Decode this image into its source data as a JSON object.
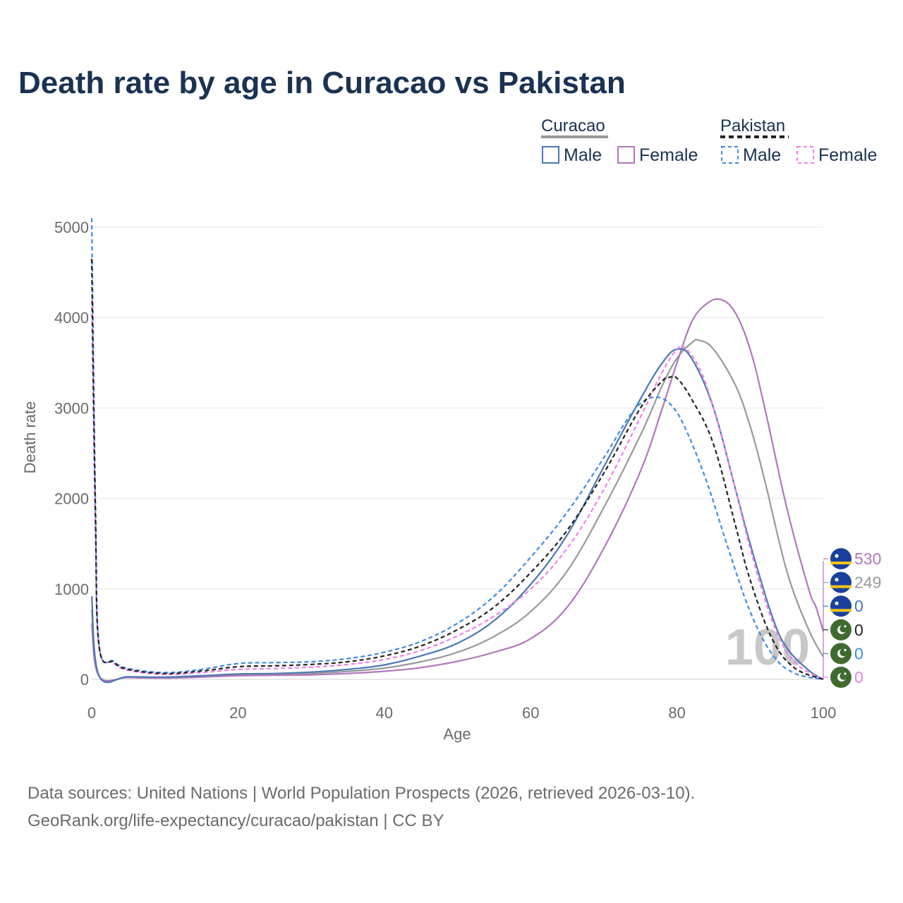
{
  "title": "Death rate by age in Curacao vs Pakistan",
  "legend": {
    "groups": [
      {
        "name": "Curacao",
        "items": [
          "Male",
          "Female"
        ]
      },
      {
        "name": "Pakistan",
        "items": [
          "Male",
          "Female"
        ]
      }
    ]
  },
  "source_line1": "Data sources: United Nations | World Population Prospects (2026, retrieved 2026-03-10).",
  "source_line2": "GeoRank.org/life-expectancy/curacao/pakistan | CC BY",
  "watermark": "100",
  "chart_data": {
    "type": "line",
    "title": "Death rate by age in Curacao vs Pakistan",
    "xlabel": "Age",
    "ylabel": "Death rate",
    "xlim": [
      0,
      100
    ],
    "ylim": [
      0,
      5000
    ],
    "xticks": [
      0,
      20,
      40,
      60,
      80,
      100
    ],
    "yticks": [
      0,
      1000,
      2000,
      3000,
      4000,
      5000
    ],
    "grid": true,
    "legend_position": "top-right",
    "series": [
      {
        "name": "Curacao Male",
        "key": "cur_male",
        "color": "#4a78b5",
        "dash": false,
        "points": [
          [
            0,
            920
          ],
          [
            1,
            40
          ],
          [
            5,
            30
          ],
          [
            10,
            25
          ],
          [
            15,
            40
          ],
          [
            20,
            60
          ],
          [
            25,
            65
          ],
          [
            30,
            80
          ],
          [
            35,
            110
          ],
          [
            40,
            160
          ],
          [
            45,
            260
          ],
          [
            50,
            400
          ],
          [
            55,
            650
          ],
          [
            60,
            1050
          ],
          [
            65,
            1600
          ],
          [
            70,
            2350
          ],
          [
            75,
            3100
          ],
          [
            78,
            3500
          ],
          [
            80,
            3650
          ],
          [
            82,
            3550
          ],
          [
            85,
            3000
          ],
          [
            88,
            2100
          ],
          [
            90,
            1500
          ],
          [
            93,
            700
          ],
          [
            95,
            350
          ],
          [
            98,
            100
          ],
          [
            100,
            0
          ]
        ],
        "end_value": "0"
      },
      {
        "name": "Curacao Female",
        "key": "cur_female",
        "color": "#b176bb",
        "dash": false,
        "points": [
          [
            0,
            620
          ],
          [
            1,
            35
          ],
          [
            5,
            20
          ],
          [
            10,
            15
          ],
          [
            15,
            25
          ],
          [
            20,
            40
          ],
          [
            25,
            45
          ],
          [
            30,
            50
          ],
          [
            35,
            65
          ],
          [
            40,
            90
          ],
          [
            45,
            130
          ],
          [
            50,
            200
          ],
          [
            55,
            300
          ],
          [
            60,
            450
          ],
          [
            65,
            800
          ],
          [
            70,
            1450
          ],
          [
            75,
            2300
          ],
          [
            78,
            3000
          ],
          [
            80,
            3500
          ],
          [
            82,
            3950
          ],
          [
            84,
            4150
          ],
          [
            86,
            4200
          ],
          [
            88,
            4050
          ],
          [
            90,
            3650
          ],
          [
            92,
            3000
          ],
          [
            95,
            1900
          ],
          [
            98,
            1000
          ],
          [
            99,
            800
          ],
          [
            100,
            530
          ]
        ],
        "end_value": "530"
      },
      {
        "name": "Curacao (both)",
        "key": "cur_both",
        "color": "#999999",
        "dash": false,
        "points": [
          [
            0,
            770
          ],
          [
            1,
            38
          ],
          [
            5,
            25
          ],
          [
            10,
            20
          ],
          [
            15,
            33
          ],
          [
            20,
            50
          ],
          [
            25,
            55
          ],
          [
            30,
            65
          ],
          [
            35,
            88
          ],
          [
            40,
            125
          ],
          [
            45,
            195
          ],
          [
            50,
            300
          ],
          [
            55,
            475
          ],
          [
            60,
            750
          ],
          [
            65,
            1200
          ],
          [
            70,
            1900
          ],
          [
            75,
            2700
          ],
          [
            78,
            3250
          ],
          [
            80,
            3550
          ],
          [
            82,
            3720
          ],
          [
            83,
            3750
          ],
          [
            85,
            3650
          ],
          [
            88,
            3250
          ],
          [
            90,
            2800
          ],
          [
            92,
            2200
          ],
          [
            95,
            1200
          ],
          [
            98,
            550
          ],
          [
            100,
            249
          ]
        ],
        "end_value": "249"
      },
      {
        "name": "Pakistan Male",
        "key": "pak_male",
        "color": "#3f8ce0",
        "dash": true,
        "points": [
          [
            0,
            5100
          ],
          [
            0.5,
            2000
          ],
          [
            1,
            380
          ],
          [
            3,
            200
          ],
          [
            5,
            120
          ],
          [
            10,
            75
          ],
          [
            15,
            110
          ],
          [
            20,
            175
          ],
          [
            25,
            185
          ],
          [
            30,
            195
          ],
          [
            35,
            230
          ],
          [
            40,
            300
          ],
          [
            45,
            420
          ],
          [
            50,
            620
          ],
          [
            55,
            920
          ],
          [
            60,
            1350
          ],
          [
            65,
            1850
          ],
          [
            70,
            2450
          ],
          [
            73,
            2850
          ],
          [
            75,
            3050
          ],
          [
            77,
            3120
          ],
          [
            79,
            3050
          ],
          [
            81,
            2800
          ],
          [
            84,
            2200
          ],
          [
            87,
            1450
          ],
          [
            90,
            750
          ],
          [
            93,
            280
          ],
          [
            96,
            70
          ],
          [
            100,
            0
          ]
        ],
        "end_value": "0"
      },
      {
        "name": "Pakistan Female",
        "key": "pak_female",
        "color": "#f080ea",
        "dash": true,
        "points": [
          [
            0,
            4200
          ],
          [
            0.5,
            1700
          ],
          [
            1,
            360
          ],
          [
            3,
            180
          ],
          [
            5,
            100
          ],
          [
            10,
            55
          ],
          [
            15,
            75
          ],
          [
            20,
            110
          ],
          [
            25,
            120
          ],
          [
            30,
            135
          ],
          [
            35,
            165
          ],
          [
            40,
            220
          ],
          [
            45,
            320
          ],
          [
            50,
            480
          ],
          [
            55,
            700
          ],
          [
            60,
            1000
          ],
          [
            65,
            1450
          ],
          [
            70,
            2100
          ],
          [
            75,
            2900
          ],
          [
            78,
            3400
          ],
          [
            80,
            3650
          ],
          [
            81,
            3670
          ],
          [
            83,
            3450
          ],
          [
            85,
            3000
          ],
          [
            88,
            2100
          ],
          [
            90,
            1450
          ],
          [
            93,
            650
          ],
          [
            96,
            200
          ],
          [
            100,
            0
          ]
        ],
        "end_value": "0"
      },
      {
        "name": "Pakistan (both)",
        "key": "pak_both",
        "color": "#222222",
        "dash": true,
        "points": [
          [
            0,
            4650
          ],
          [
            0.5,
            1850
          ],
          [
            1,
            370
          ],
          [
            3,
            190
          ],
          [
            5,
            110
          ],
          [
            10,
            65
          ],
          [
            15,
            92
          ],
          [
            20,
            140
          ],
          [
            25,
            150
          ],
          [
            30,
            165
          ],
          [
            35,
            195
          ],
          [
            40,
            260
          ],
          [
            45,
            370
          ],
          [
            50,
            550
          ],
          [
            55,
            800
          ],
          [
            60,
            1180
          ],
          [
            65,
            1650
          ],
          [
            70,
            2280
          ],
          [
            75,
            3000
          ],
          [
            78,
            3300
          ],
          [
            79,
            3340
          ],
          [
            80,
            3330
          ],
          [
            82,
            3100
          ],
          [
            85,
            2600
          ],
          [
            88,
            1700
          ],
          [
            90,
            1100
          ],
          [
            93,
            450
          ],
          [
            96,
            130
          ],
          [
            100,
            0
          ]
        ],
        "end_value": "0"
      }
    ]
  },
  "end_labels": [
    {
      "value": "530",
      "color": "#b176bb",
      "flag": "curacao"
    },
    {
      "value": "249",
      "color": "#999999",
      "flag": "curacao"
    },
    {
      "value": "0",
      "color": "#4a78b5",
      "flag": "curacao"
    },
    {
      "value": "0",
      "color": "#222222",
      "flag": "pakistan"
    },
    {
      "value": "0",
      "color": "#3f8ce0",
      "flag": "pakistan"
    },
    {
      "value": "0",
      "color": "#f080ea",
      "flag": "pakistan"
    }
  ]
}
